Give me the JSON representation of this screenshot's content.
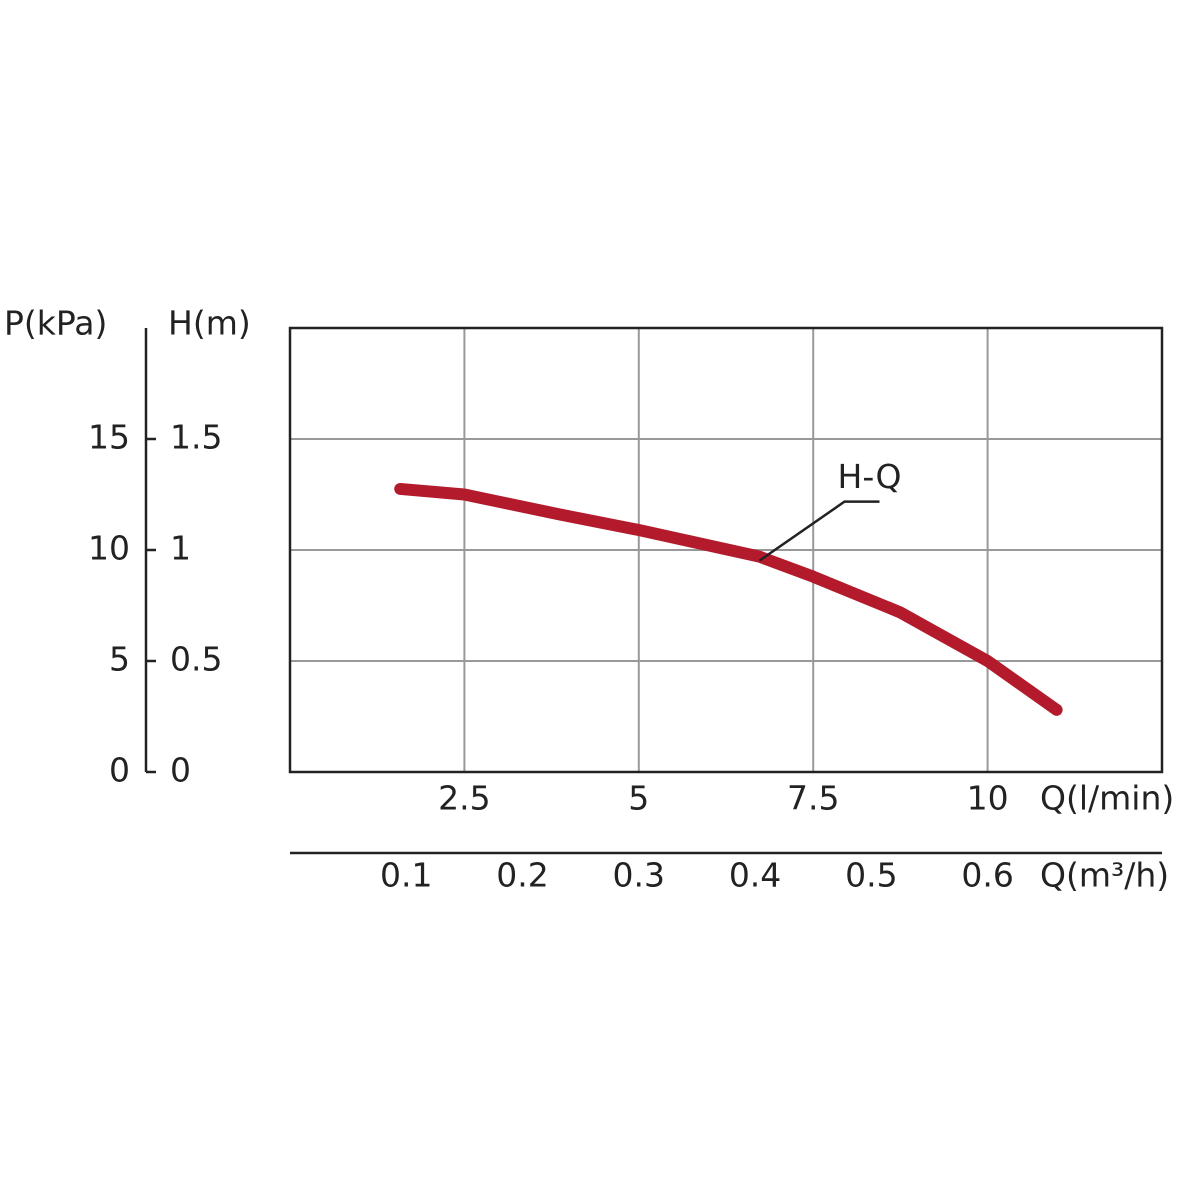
{
  "chart_data": {
    "type": "line",
    "x_label": "Q(l/min)",
    "x2_label": "Q(m³/h)",
    "y_label": "H(m)",
    "y2_label": "P(kPa)",
    "x": [
      1.58,
      2.5,
      3.87,
      5,
      6.73,
      7.5,
      8.74,
      10,
      10.99
    ],
    "series": [
      {
        "name": "H-Q",
        "color": "#b31b2c",
        "values": [
          1.275,
          1.25,
          1.16,
          1.09,
          0.97,
          0.88,
          0.72,
          0.5,
          0.28
        ]
      }
    ],
    "xlim": [
      0,
      12.5
    ],
    "xticks": [
      2.5,
      5,
      7.5,
      10
    ],
    "x2lim": [
      0,
      0.75
    ],
    "x2ticks": [
      0.1,
      0.2,
      0.3,
      0.4,
      0.5,
      0.6
    ],
    "ylim": [
      0,
      2
    ],
    "yticks": [
      0,
      0.5,
      1,
      1.5
    ],
    "y2lim": [
      0,
      20
    ],
    "y2ticks": [
      0,
      5,
      10,
      15
    ],
    "grid": true
  }
}
